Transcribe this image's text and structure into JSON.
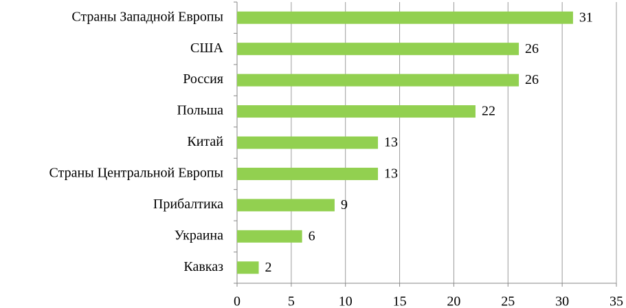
{
  "chart_data": {
    "type": "bar",
    "orientation": "horizontal",
    "categories": [
      "Страны Западной Европы",
      "США",
      "Россия",
      "Польша",
      "Китай",
      "Страны Центральной Европы",
      "Прибалтика",
      "Украина",
      "Кавказ"
    ],
    "values": [
      31,
      26,
      26,
      22,
      13,
      13,
      9,
      6,
      2
    ],
    "color": "#92d050",
    "xlim": [
      0,
      35
    ],
    "xticks": [
      0,
      5,
      10,
      15,
      20,
      25,
      30,
      35
    ],
    "grid": true
  }
}
